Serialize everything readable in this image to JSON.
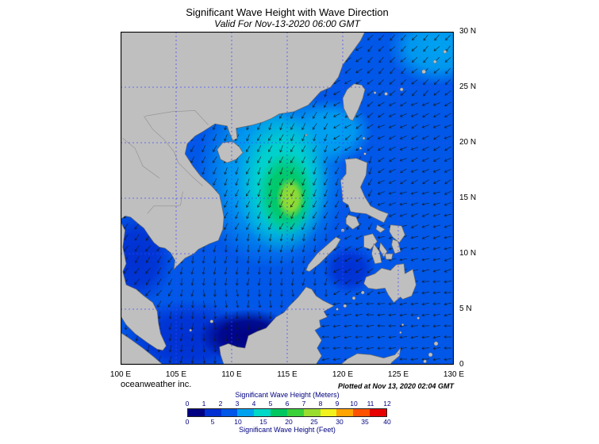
{
  "header": {
    "title": "Significant Wave Height with Wave Direction",
    "subtitle": "Valid For Nov-13-2020 06:00 GMT"
  },
  "axes": {
    "lat": [
      "30 N",
      "25 N",
      "20 N",
      "15 N",
      "10 N",
      "5 N",
      "0"
    ],
    "lon": [
      "100 E",
      "105 E",
      "110 E",
      "115 E",
      "120 E",
      "125 E",
      "130 E"
    ]
  },
  "footer": {
    "credit": "oceanweather inc.",
    "plotted": "Plotted at Nov 13, 2020 02:04 GMT"
  },
  "legend": {
    "title_meters": "Significant Wave Height (Meters)",
    "title_feet": "Significant Wave Height (Feet)"
  },
  "chart_data": {
    "type": "heatmap",
    "title": "Significant Wave Height with Wave Direction",
    "valid_time": "Nov-13-2020 06:00 GMT",
    "plotted_time": "Nov 13, 2020 02:04 GMT",
    "region": {
      "lon_min": 100,
      "lon_max": 130,
      "lat_min": 0,
      "lat_max": 30
    },
    "x_tick_labels": [
      "100 E",
      "105 E",
      "110 E",
      "115 E",
      "120 E",
      "125 E",
      "130 E"
    ],
    "y_tick_labels": [
      "30 N",
      "25 N",
      "20 N",
      "15 N",
      "10 N",
      "5 N",
      "0"
    ],
    "grid_color": "#3b45ff",
    "land_color": "#bfbfbf",
    "coast_color": "#6b6b6b",
    "border_color": "#8f8f8f",
    "arrow_color": "#14181c",
    "base_hs_m": 2.3,
    "colorbar": {
      "title_meters": "Significant Wave Height (Meters)",
      "title_feet": "Significant Wave Height (Feet)",
      "meters_ticks": [
        0,
        1,
        2,
        3,
        4,
        5,
        6,
        7,
        8,
        9,
        10,
        11,
        12
      ],
      "feet_ticks": [
        0,
        5,
        10,
        15,
        20,
        25,
        30,
        35,
        40
      ],
      "colors": [
        "#000082",
        "#0030d2",
        "#0057e8",
        "#00a2f0",
        "#00d8c8",
        "#00c760",
        "#3ad03a",
        "#9add30",
        "#f2f21e",
        "#ffa400",
        "#ff5200",
        "#e60000"
      ],
      "text_color": "#000080"
    },
    "field_features": [
      {
        "name": "gulf-of-thailand-low",
        "lon": 101.4,
        "lat": 9.6,
        "rx_deg": 3.4,
        "ry_deg": 4.2,
        "hs_m": 1.4
      },
      {
        "name": "south-scs-low",
        "lon": 106.0,
        "lat": 2.4,
        "rx_deg": 6.0,
        "ry_deg": 3.4,
        "hs_m": 1.2
      },
      {
        "name": "borneo-coastal-low",
        "lon": 111.5,
        "lat": 2.6,
        "rx_deg": 4.5,
        "ry_deg": 2.4,
        "hs_m": 0.9
      },
      {
        "name": "sulu-sea-low",
        "lon": 120.6,
        "lat": 8.6,
        "rx_deg": 2.4,
        "ry_deg": 2.2,
        "hs_m": 1.5
      },
      {
        "name": "north-scs-moderate",
        "lon": 113.6,
        "lat": 17.2,
        "rx_deg": 6.8,
        "ry_deg": 8.6,
        "hs_m": 3.1
      },
      {
        "name": "east-china-sea-corner",
        "lon": 128.6,
        "lat": 28.6,
        "rx_deg": 4.6,
        "ry_deg": 3.4,
        "hs_m": 3.0
      },
      {
        "name": "luzon-strait-band",
        "lon": 118.9,
        "lat": 21.0,
        "rx_deg": 3.8,
        "ry_deg": 3.0,
        "hs_m": 3.6
      },
      {
        "name": "central-scs-high",
        "lon": 114.6,
        "lat": 16.4,
        "rx_deg": 4.2,
        "ry_deg": 6.4,
        "hs_m": 4.2
      },
      {
        "name": "typhoon-swell-high",
        "lon": 114.9,
        "lat": 15.4,
        "rx_deg": 2.6,
        "ry_deg": 3.8,
        "hs_m": 5.5
      },
      {
        "name": "typhoon-peak",
        "lon": 115.3,
        "lat": 15.0,
        "rx_deg": 1.3,
        "ry_deg": 1.9,
        "hs_m": 7.5
      }
    ],
    "wave_directions": [
      {
        "area": "east-china-sea",
        "toward_deg": 225
      },
      {
        "area": "philippine-sea-north",
        "toward_deg": 243
      },
      {
        "area": "philippine-sea-central",
        "toward_deg": 252
      },
      {
        "area": "philippine-sea-south",
        "toward_deg": 263
      },
      {
        "area": "luzon-strait",
        "toward_deg": 235
      },
      {
        "area": "gulf-of-thailand",
        "toward_deg": 215
      },
      {
        "area": "celebes-sea",
        "toward_deg": 263
      },
      {
        "area": "sulu-sea",
        "toward_deg": 237
      },
      {
        "area": "south-scs-near-borneo",
        "toward_deg": 178
      },
      {
        "area": "south-scs",
        "toward_deg": 190
      },
      {
        "area": "north-scs",
        "toward_deg": 205
      }
    ]
  }
}
